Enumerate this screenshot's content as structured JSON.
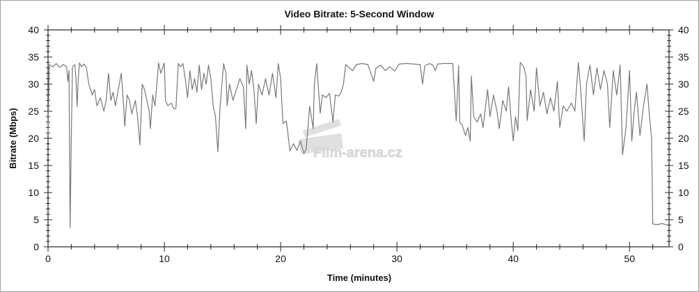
{
  "chart_data": {
    "type": "line",
    "title": "Video Bitrate: 5-Second Window",
    "xlabel": "Time (minutes)",
    "ylabel": "Bitrate (Mbps)",
    "xlim": [
      0,
      53.4
    ],
    "ylim": [
      0,
      40
    ],
    "x_ticks": [
      0,
      10,
      20,
      30,
      40,
      50
    ],
    "y_ticks": [
      0,
      5,
      10,
      15,
      20,
      25,
      30,
      35,
      40
    ],
    "y_ticks_right": true,
    "grid": false,
    "line_color": "#777777",
    "watermark": "Film-arena.cz",
    "series": [
      {
        "points": [
          [
            0,
            20.8
          ],
          [
            0.1,
            33.6
          ],
          [
            0.4,
            33.2
          ],
          [
            0.7,
            33.8
          ],
          [
            1.0,
            33.1
          ],
          [
            1.3,
            33.6
          ],
          [
            1.6,
            33.2
          ],
          [
            1.7,
            30.5
          ],
          [
            1.8,
            32.5
          ],
          [
            1.9,
            3.5
          ],
          [
            2.0,
            20
          ],
          [
            2.1,
            33.2
          ],
          [
            2.3,
            33.6
          ],
          [
            2.4,
            31
          ],
          [
            2.5,
            25.9
          ],
          [
            2.6,
            31
          ],
          [
            2.7,
            33.9
          ],
          [
            2.9,
            33.2
          ],
          [
            3.1,
            33.7
          ],
          [
            3.3,
            33
          ],
          [
            3.5,
            30
          ],
          [
            3.8,
            28
          ],
          [
            4.0,
            29
          ],
          [
            4.2,
            26
          ],
          [
            4.5,
            27.5
          ],
          [
            4.8,
            25
          ],
          [
            5.0,
            27
          ],
          [
            5.2,
            32
          ],
          [
            5.4,
            27
          ],
          [
            5.6,
            28.5
          ],
          [
            5.8,
            26
          ],
          [
            6.0,
            28.5
          ],
          [
            6.3,
            32
          ],
          [
            6.5,
            26
          ],
          [
            6.6,
            22.2
          ],
          [
            6.8,
            28
          ],
          [
            7.0,
            27
          ],
          [
            7.2,
            24.5
          ],
          [
            7.5,
            27
          ],
          [
            7.7,
            24
          ],
          [
            7.9,
            18.8
          ],
          [
            8.1,
            30
          ],
          [
            8.3,
            29
          ],
          [
            8.5,
            27
          ],
          [
            8.7,
            25
          ],
          [
            8.8,
            21.8
          ],
          [
            9.0,
            28
          ],
          [
            9.2,
            26
          ],
          [
            9.5,
            33.9
          ],
          [
            9.7,
            32
          ],
          [
            10.0,
            33.9
          ],
          [
            10.1,
            27
          ],
          [
            10.3,
            26
          ],
          [
            10.6,
            26.5
          ],
          [
            10.8,
            25.5
          ],
          [
            11.0,
            25.5
          ],
          [
            11.2,
            33.8
          ],
          [
            11.4,
            33.2
          ],
          [
            11.6,
            33.8
          ],
          [
            11.8,
            31
          ],
          [
            12.0,
            27.5
          ],
          [
            12.2,
            32.5
          ],
          [
            12.4,
            29
          ],
          [
            12.6,
            31
          ],
          [
            12.8,
            28.5
          ],
          [
            13.0,
            33.5
          ],
          [
            13.2,
            29
          ],
          [
            13.4,
            32
          ],
          [
            13.6,
            30
          ],
          [
            13.8,
            33.5
          ],
          [
            14.0,
            31
          ],
          [
            14.2,
            26
          ],
          [
            14.4,
            24
          ],
          [
            14.6,
            17.5
          ],
          [
            14.8,
            26
          ],
          [
            15.1,
            33.8
          ],
          [
            15.3,
            32
          ],
          [
            15.4,
            26
          ],
          [
            15.6,
            30
          ],
          [
            15.9,
            27
          ],
          [
            16.2,
            29
          ],
          [
            16.5,
            31
          ],
          [
            16.8,
            29.5
          ],
          [
            17.0,
            21.8
          ],
          [
            17.1,
            33.5
          ],
          [
            17.3,
            30
          ],
          [
            17.5,
            32.5
          ],
          [
            17.7,
            29
          ],
          [
            17.9,
            22.7
          ],
          [
            18.1,
            30
          ],
          [
            18.4,
            28
          ],
          [
            18.7,
            31
          ],
          [
            19.0,
            28
          ],
          [
            19.3,
            32
          ],
          [
            19.6,
            27.5
          ],
          [
            19.8,
            33.8
          ],
          [
            20.0,
            31
          ],
          [
            20.2,
            22.7
          ],
          [
            20.5,
            23.2
          ],
          [
            20.8,
            17.7
          ],
          [
            21.1,
            19
          ],
          [
            21.4,
            17.8
          ],
          [
            21.7,
            19.5
          ],
          [
            22.0,
            17.2
          ],
          [
            22.2,
            18
          ],
          [
            22.5,
            25.9
          ],
          [
            22.8,
            21.8
          ],
          [
            22.9,
            30
          ],
          [
            23.1,
            33.8
          ],
          [
            23.4,
            24.6
          ],
          [
            23.6,
            28
          ],
          [
            23.9,
            27.5
          ],
          [
            24.2,
            28.3
          ],
          [
            24.5,
            23
          ],
          [
            24.7,
            28
          ],
          [
            25.0,
            27.8
          ],
          [
            25.2,
            28.5
          ],
          [
            25.4,
            30
          ],
          [
            25.6,
            33.6
          ],
          [
            25.9,
            33
          ],
          [
            26.2,
            32.5
          ],
          [
            26.5,
            33.6
          ],
          [
            27.0,
            33.8
          ],
          [
            27.5,
            33.6
          ],
          [
            28.0,
            30.5
          ],
          [
            28.2,
            33
          ],
          [
            28.6,
            33.5
          ],
          [
            29.0,
            32.5
          ],
          [
            29.4,
            33.2
          ],
          [
            29.8,
            32.4
          ],
          [
            30.2,
            33.7
          ],
          [
            30.8,
            33.8
          ],
          [
            31.5,
            33.7
          ],
          [
            32.0,
            33.6
          ],
          [
            32.2,
            30
          ],
          [
            32.4,
            33.4
          ],
          [
            32.8,
            33.8
          ],
          [
            33.1,
            33.5
          ],
          [
            33.3,
            32.5
          ],
          [
            33.5,
            33.7
          ],
          [
            34.0,
            33.8
          ],
          [
            34.8,
            33.8
          ],
          [
            35.1,
            23.2
          ],
          [
            35.3,
            33.4
          ],
          [
            35.4,
            23
          ],
          [
            35.6,
            22.5
          ],
          [
            35.9,
            20.5
          ],
          [
            36.1,
            22
          ],
          [
            36.3,
            19.5
          ],
          [
            36.4,
            31.5
          ],
          [
            36.6,
            24
          ],
          [
            36.9,
            23
          ],
          [
            37.2,
            24.5
          ],
          [
            37.4,
            22
          ],
          [
            37.8,
            29
          ],
          [
            38.0,
            24
          ],
          [
            38.3,
            28
          ],
          [
            38.6,
            25
          ],
          [
            38.8,
            21.8
          ],
          [
            39.1,
            27
          ],
          [
            39.4,
            25
          ],
          [
            39.6,
            29.5
          ],
          [
            39.8,
            24
          ],
          [
            40.0,
            19.5
          ],
          [
            40.2,
            24
          ],
          [
            40.4,
            21.4
          ],
          [
            40.6,
            34
          ],
          [
            40.9,
            33.2
          ],
          [
            41.1,
            31.5
          ],
          [
            41.2,
            23.3
          ],
          [
            41.5,
            29
          ],
          [
            41.8,
            25
          ],
          [
            42.0,
            33
          ],
          [
            42.3,
            26
          ],
          [
            42.6,
            28.5
          ],
          [
            42.9,
            24.5
          ],
          [
            43.2,
            27.5
          ],
          [
            43.5,
            25
          ],
          [
            43.8,
            30.5
          ],
          [
            44.0,
            22
          ],
          [
            44.3,
            26
          ],
          [
            44.6,
            25
          ],
          [
            45.0,
            26.5
          ],
          [
            45.3,
            25
          ],
          [
            45.6,
            34
          ],
          [
            45.8,
            29
          ],
          [
            46.1,
            19.5
          ],
          [
            46.3,
            30
          ],
          [
            46.6,
            33.5
          ],
          [
            46.9,
            28
          ],
          [
            47.2,
            33
          ],
          [
            47.5,
            29
          ],
          [
            47.8,
            32.5
          ],
          [
            48.1,
            30
          ],
          [
            48.3,
            22
          ],
          [
            48.6,
            32.5
          ],
          [
            48.9,
            28
          ],
          [
            49.2,
            33.5
          ],
          [
            49.4,
            17
          ],
          [
            49.7,
            22
          ],
          [
            50.0,
            32.5
          ],
          [
            50.2,
            19.5
          ],
          [
            50.4,
            25
          ],
          [
            50.6,
            28.5
          ],
          [
            50.9,
            20.5
          ],
          [
            51.2,
            26
          ],
          [
            51.5,
            30
          ],
          [
            51.7,
            24.5
          ],
          [
            51.9,
            20
          ],
          [
            52.0,
            4.2
          ],
          [
            52.4,
            4.1
          ],
          [
            52.8,
            4.3
          ],
          [
            53.3,
            4.0
          ]
        ]
      }
    ]
  }
}
